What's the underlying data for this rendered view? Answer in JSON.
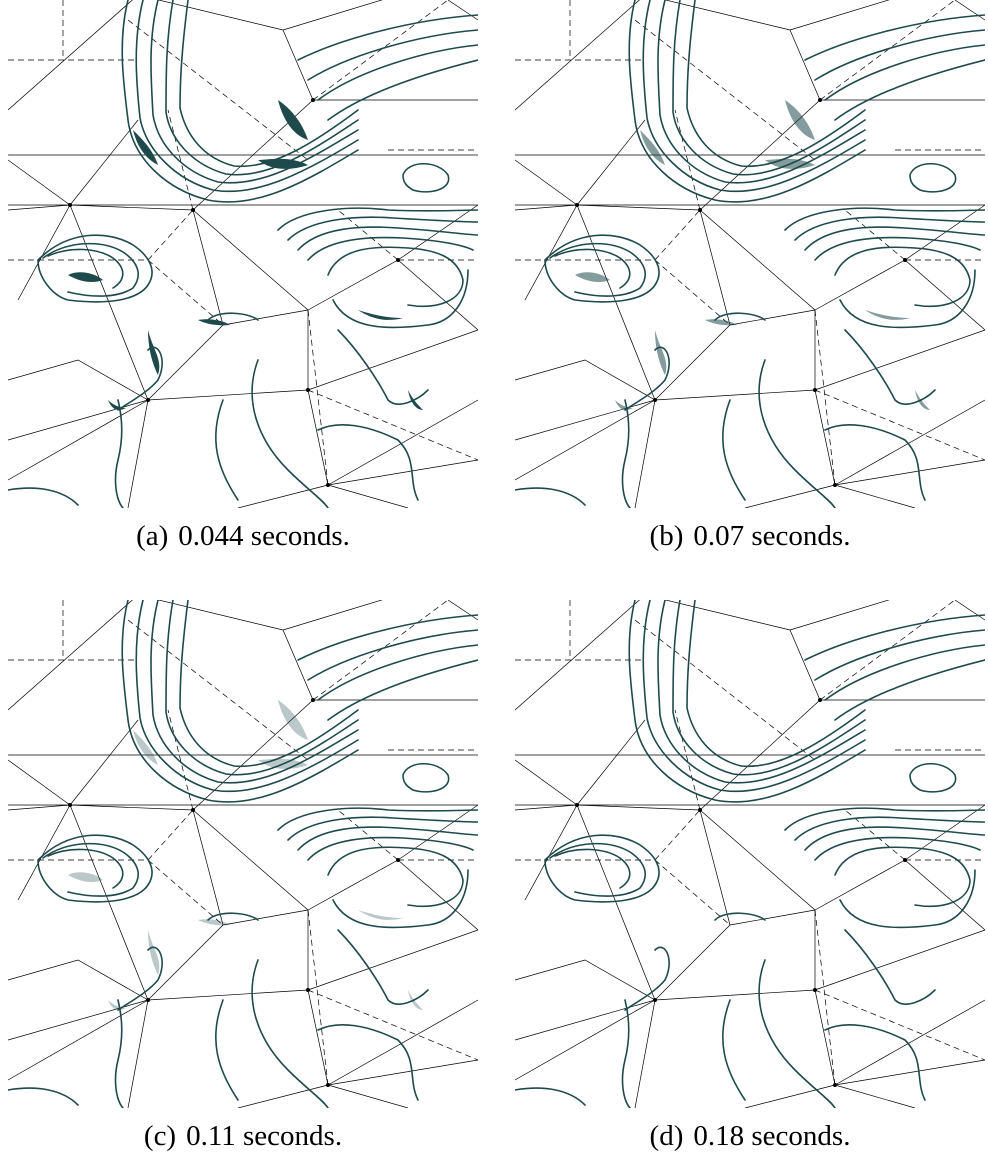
{
  "figure": {
    "panels": [
      {
        "label": "(a)",
        "caption": "0.044 seconds.",
        "blob_weight": 1.0
      },
      {
        "label": "(b)",
        "caption": "0.07 seconds.",
        "blob_weight": 0.55
      },
      {
        "label": "(c)",
        "caption": "0.11 seconds.",
        "blob_weight": 0.3
      },
      {
        "label": "(d)",
        "caption": "0.18 seconds.",
        "blob_weight": 0.0
      }
    ],
    "colors": {
      "contour": "#1f4a4c",
      "mesh": "#000000"
    }
  }
}
